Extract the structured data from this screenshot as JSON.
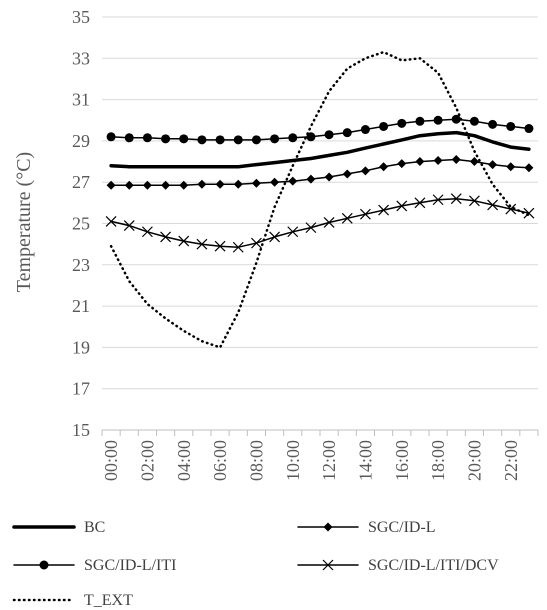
{
  "chart_data": {
    "type": "line",
    "title": "",
    "xlabel": "",
    "ylabel": "Temperature (°C)",
    "ylim": [
      15,
      35
    ],
    "yticks": [
      15,
      17,
      19,
      21,
      23,
      25,
      27,
      29,
      31,
      33,
      35
    ],
    "grid": "horizontal",
    "legend_position": "bottom",
    "x": [
      "00:00",
      "01:00",
      "02:00",
      "03:00",
      "04:00",
      "05:00",
      "06:00",
      "07:00",
      "08:00",
      "09:00",
      "10:00",
      "11:00",
      "12:00",
      "13:00",
      "14:00",
      "15:00",
      "16:00",
      "17:00",
      "18:00",
      "19:00",
      "20:00",
      "21:00",
      "22:00",
      "23:00"
    ],
    "x_tick_labels": [
      "00:00",
      "02:00",
      "04:00",
      "06:00",
      "08:00",
      "10:00",
      "12:00",
      "14:00",
      "16:00",
      "18:00",
      "20:00",
      "22:00"
    ],
    "series": [
      {
        "name": "BC",
        "style": "thick",
        "color": "#000000",
        "values": [
          27.8,
          27.75,
          27.75,
          27.75,
          27.75,
          27.75,
          27.75,
          27.75,
          27.85,
          27.95,
          28.05,
          28.15,
          28.3,
          28.45,
          28.65,
          28.85,
          29.05,
          29.25,
          29.35,
          29.4,
          29.25,
          28.95,
          28.7,
          28.6
        ]
      },
      {
        "name": "SGC/ID-L",
        "style": "diamond",
        "color": "#000000",
        "values": [
          26.85,
          26.85,
          26.85,
          26.85,
          26.85,
          26.9,
          26.9,
          26.9,
          26.95,
          27.0,
          27.05,
          27.15,
          27.25,
          27.4,
          27.55,
          27.75,
          27.9,
          28.0,
          28.05,
          28.1,
          28.0,
          27.85,
          27.75,
          27.7
        ]
      },
      {
        "name": "SGC/ID-L/ITI",
        "style": "circle",
        "color": "#000000",
        "values": [
          29.2,
          29.15,
          29.15,
          29.1,
          29.1,
          29.05,
          29.05,
          29.05,
          29.05,
          29.1,
          29.15,
          29.2,
          29.3,
          29.4,
          29.55,
          29.7,
          29.85,
          29.95,
          30.0,
          30.05,
          29.95,
          29.8,
          29.7,
          29.6
        ]
      },
      {
        "name": "SGC/ID-L/ITI/DCV",
        "style": "x",
        "color": "#000000",
        "values": [
          25.1,
          24.9,
          24.6,
          24.35,
          24.15,
          24.0,
          23.9,
          23.85,
          24.05,
          24.35,
          24.6,
          24.8,
          25.05,
          25.25,
          25.45,
          25.65,
          25.85,
          26.0,
          26.15,
          26.2,
          26.1,
          25.9,
          25.7,
          25.5
        ]
      },
      {
        "name": "T_EXT",
        "style": "dotted",
        "color": "#000000",
        "values": [
          23.9,
          22.2,
          21.1,
          20.4,
          19.8,
          19.3,
          19.0,
          20.7,
          23.1,
          25.8,
          27.8,
          29.7,
          31.4,
          32.5,
          33.0,
          33.3,
          32.9,
          33.0,
          32.3,
          30.6,
          28.5,
          26.9,
          25.8,
          25.4
        ]
      }
    ]
  }
}
